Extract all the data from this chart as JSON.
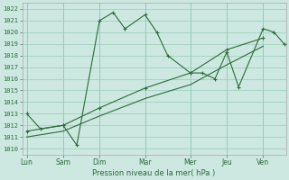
{
  "title": "",
  "xlabel": "Pression niveau de la mer( hPa )",
  "background_color": "#cce8e0",
  "grid_color": "#99ccbb",
  "line_color": "#2d6b3c",
  "ylim": [
    1009.5,
    1022.5
  ],
  "yticks": [
    1010,
    1011,
    1012,
    1013,
    1014,
    1015,
    1016,
    1017,
    1018,
    1019,
    1020,
    1021,
    1022
  ],
  "day_labels": [
    "Lun",
    "Sam",
    "Dim",
    "Mar",
    "Mer",
    "Jeu",
    "Ven"
  ],
  "day_positions": [
    0,
    40,
    80,
    130,
    180,
    220,
    260
  ],
  "xlim": [
    -5,
    285
  ],
  "series1_x": [
    0,
    15,
    40,
    55,
    80,
    95,
    108,
    130,
    143,
    155,
    180,
    193,
    207,
    220,
    233,
    260,
    272,
    283
  ],
  "series1_y": [
    1013.0,
    1011.7,
    1012.0,
    1010.3,
    1021.0,
    1021.7,
    1020.3,
    1021.5,
    1020.0,
    1018.0,
    1016.5,
    1016.5,
    1016.0,
    1018.3,
    1015.3,
    1020.3,
    1020.0,
    1019.0
  ],
  "series2_x": [
    0,
    40,
    80,
    130,
    180,
    220,
    260
  ],
  "series2_y": [
    1011.5,
    1012.0,
    1013.5,
    1015.2,
    1016.5,
    1018.5,
    1019.5
  ],
  "series3_x": [
    0,
    40,
    80,
    130,
    180,
    220,
    260
  ],
  "series3_y": [
    1011.0,
    1011.5,
    1012.8,
    1014.3,
    1015.5,
    1017.2,
    1018.8
  ],
  "figsize": [
    3.2,
    2.0
  ],
  "dpi": 100
}
